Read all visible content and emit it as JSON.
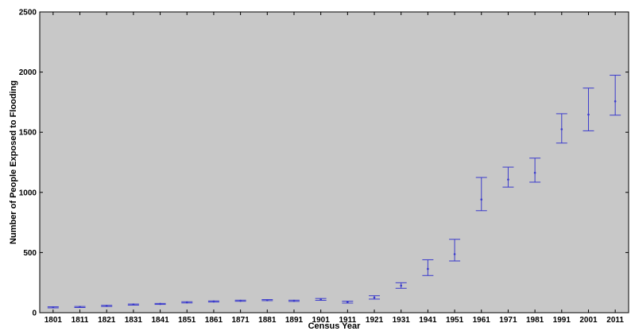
{
  "chart_data": {
    "type": "scatter",
    "title": "",
    "xlabel": "Census Year",
    "ylabel": "Number of People Exposed to Flooding",
    "ylim": [
      0,
      2500
    ],
    "yticks": [
      0,
      500,
      1000,
      1500,
      2000,
      2500
    ],
    "grid": false,
    "error_bars": true,
    "colors": {
      "plot_background": "#c8c8c8",
      "marker": "#3a3acc",
      "axis": "#000000"
    },
    "categories": [
      "1801",
      "1811",
      "1821",
      "1831",
      "1841",
      "1851",
      "1861",
      "1871",
      "1881",
      "1891",
      "1901",
      "1911",
      "1921",
      "1931",
      "1941",
      "1951",
      "1961",
      "1971",
      "1981",
      "1991",
      "2001",
      "2011"
    ],
    "series": [
      {
        "values": [
          45,
          48,
          57,
          68,
          73,
          86,
          93,
          99,
          104,
          99,
          111,
          88,
          126,
          225,
          364,
          487,
          941,
          1107,
          1163,
          1525,
          1647,
          1757
        ],
        "lower": [
          40,
          43,
          52,
          63,
          69,
          81,
          89,
          95,
          100,
          94,
          103,
          80,
          113,
          203,
          309,
          430,
          848,
          1044,
          1085,
          1410,
          1512,
          1642
        ],
        "upper": [
          49,
          52,
          61,
          72,
          77,
          91,
          98,
          104,
          109,
          104,
          118,
          96,
          141,
          249,
          440,
          610,
          1124,
          1210,
          1285,
          1654,
          1867,
          1974
        ]
      }
    ]
  }
}
